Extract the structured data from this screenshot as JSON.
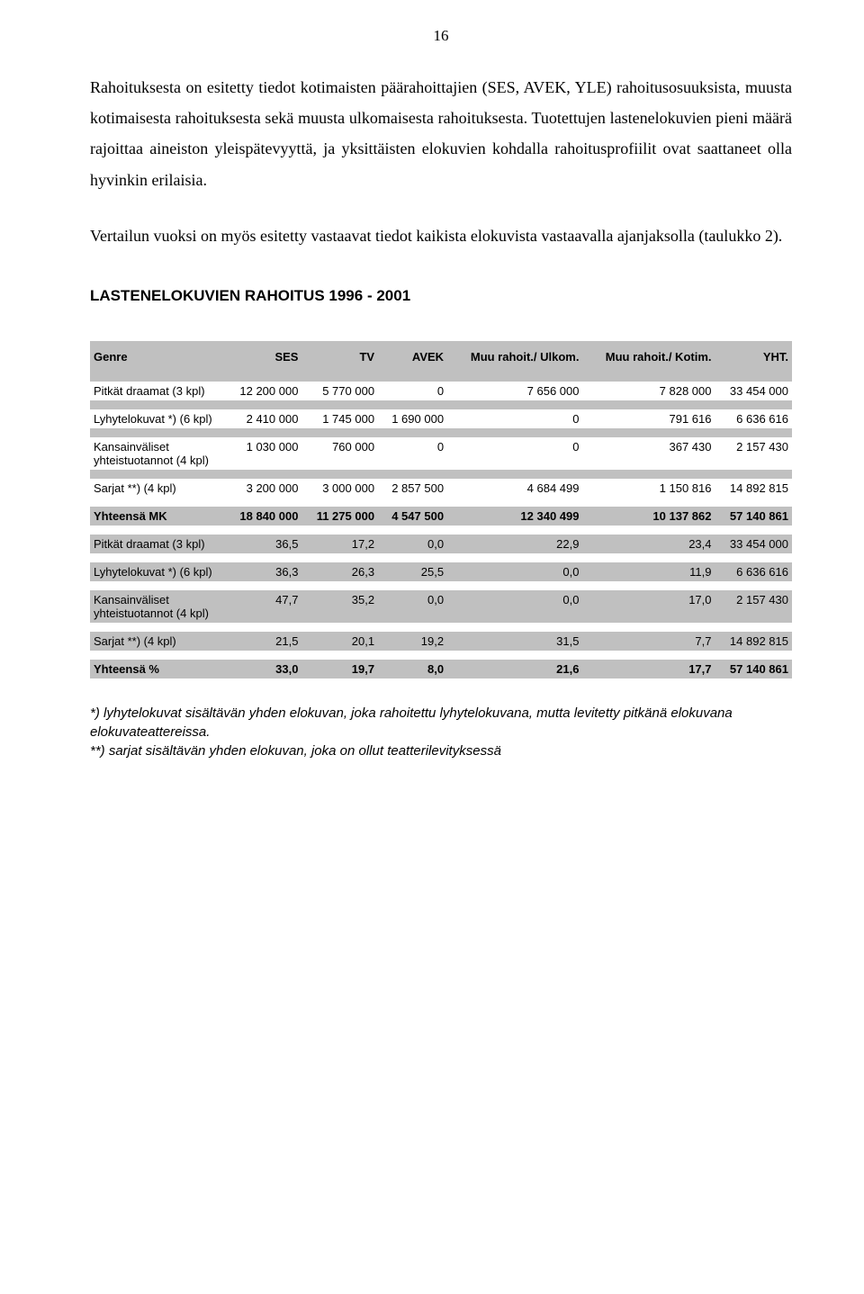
{
  "page_number": "16",
  "paragraphs": {
    "p1": "Rahoituksesta on esitetty tiedot kotimaisten päärahoittajien (SES, AVEK, YLE) rahoitusosuuksista, muusta kotimaisesta rahoituksesta sekä muusta ulkomaisesta rahoituksesta. Tuotettujen lastenelokuvien pieni määrä rajoittaa aineiston yleispätevyyttä, ja yksittäisten elokuvien kohdalla rahoitusprofiilit ovat saattaneet olla hyvinkin erilaisia.",
    "p2": "Vertailun vuoksi on myös esitetty vastaavat tiedot kaikista elokuvista vastaavalla ajanjaksolla (taulukko 2)."
  },
  "table_title": "LASTENELOKUVIEN RAHOITUS 1996 - 2001",
  "columns": {
    "c0": "Genre",
    "c1": "SES",
    "c2": "TV",
    "c3": "AVEK",
    "c4": "Muu rahoit./ Ulkom.",
    "c5": "Muu rahoit./ Kotim.",
    "c6": "YHT."
  },
  "rows_abs": {
    "r0": {
      "label": "Pitkät draamat (3 kpl)",
      "v1": "12 200 000",
      "v2": "5 770 000",
      "v3": "0",
      "v4": "7 656 000",
      "v5": "7 828 000",
      "v6": "33 454 000"
    },
    "r1": {
      "label": "Lyhytelokuvat *) (6 kpl)",
      "v1": "2 410 000",
      "v2": "1 745 000",
      "v3": "1 690 000",
      "v4": "0",
      "v5": "791 616",
      "v6": "6 636 616"
    },
    "r2": {
      "label": "Kansainväliset yhteistuotannot (4 kpl)",
      "v1": "1 030 000",
      "v2": "760 000",
      "v3": "0",
      "v4": "0",
      "v5": "367 430",
      "v6": "2 157 430"
    },
    "r3": {
      "label": "Sarjat **) (4 kpl)",
      "v1": "3 200 000",
      "v2": "3 000 000",
      "v3": "2 857 500",
      "v4": "4 684 499",
      "v5": "1 150 816",
      "v6": "14 892 815"
    },
    "rt": {
      "label": "Yhteensä MK",
      "v1": "18 840 000",
      "v2": "11 275 000",
      "v3": "4 547 500",
      "v4": "12 340 499",
      "v5": "10 137 862",
      "v6": "57 140 861"
    }
  },
  "rows_pct": {
    "p0": {
      "label": "Pitkät draamat (3 kpl)",
      "v1": "36,5",
      "v2": "17,2",
      "v3": "0,0",
      "v4": "22,9",
      "v5": "23,4",
      "v6": "33 454 000"
    },
    "p1": {
      "label": "Lyhytelokuvat *) (6 kpl)",
      "v1": "36,3",
      "v2": "26,3",
      "v3": "25,5",
      "v4": "0,0",
      "v5": "11,9",
      "v6": "6 636 616"
    },
    "p2": {
      "label": "Kansainväliset yhteistuotannot (4 kpl)",
      "v1": "47,7",
      "v2": "35,2",
      "v3": "0,0",
      "v4": "0,0",
      "v5": "17,0",
      "v6": "2 157 430"
    },
    "p3": {
      "label": "Sarjat **) (4 kpl)",
      "v1": "21,5",
      "v2": "20,1",
      "v3": "19,2",
      "v4": "31,5",
      "v5": "7,7",
      "v6": "14 892 815"
    },
    "pt": {
      "label": "Yhteensä %",
      "v1": "33,0",
      "v2": "19,7",
      "v3": "8,0",
      "v4": "21,6",
      "v5": "17,7",
      "v6": "57 140 861"
    }
  },
  "footnotes": {
    "f1": "*) lyhytelokuvat sisältävän yhden elokuvan, joka rahoitettu lyhytelokuvana, mutta levitetty pitkänä elokuvana elokuvateattereissa.",
    "f2": "**) sarjat sisältävän yhden elokuvan, joka on ollut teatterilevityksessä"
  },
  "colors": {
    "shade_bg": "#c0c0c0",
    "white_bg": "#ffffff",
    "text": "#000000"
  },
  "fonts": {
    "body_family": "Times New Roman",
    "body_size_pt": 14,
    "table_family": "Arial",
    "table_size_pt": 10,
    "title_size_pt": 13
  }
}
